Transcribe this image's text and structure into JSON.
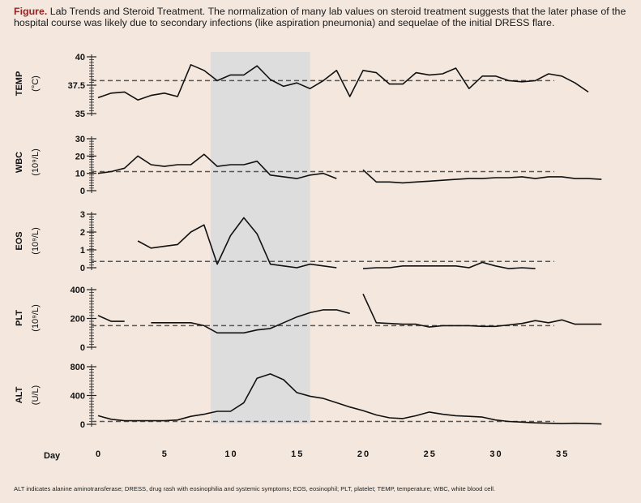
{
  "caption": {
    "label": "Figure.",
    "text": "Lab Trends and Steroid Treatment. The normalization of many lab values on steroid treatment suggests that the later phase of the hospital course was likely due to secondary infections (like aspiration pneumonia) and sequelae of the initial DRESS flare."
  },
  "footnote": "ALT indicates alanine aminotransferase; DRESS, drug rash with eosinophilia and systemic symptoms; EOS, eosinophil; PLT, platelet; TEMP, temperature; WBC, white blood cell.",
  "colors": {
    "background": "#f3e7de",
    "shade": "#dddddd",
    "line": "#111111",
    "reference": "#555555"
  },
  "chart_data": {
    "type": "line",
    "xlabel": "Day",
    "xlim": [
      0,
      35
    ],
    "xticks": [
      0,
      5,
      10,
      15,
      20,
      25,
      30,
      35
    ],
    "steroid_period": [
      8.5,
      16
    ],
    "panels": [
      {
        "id": "temp",
        "label": "TEMP",
        "unit": "(°C)",
        "ylim": [
          35,
          40
        ],
        "yticks": [
          35,
          37.5,
          40
        ],
        "ytick_labels": [
          "35",
          "37.5",
          "40"
        ],
        "reference": 37.9,
        "segments": [
          [
            [
              0,
              36.4
            ],
            [
              1,
              36.8
            ],
            [
              2,
              36.9
            ],
            [
              3,
              36.2
            ],
            [
              4,
              36.6
            ],
            [
              5,
              36.8
            ],
            [
              6,
              36.5
            ],
            [
              7,
              39.3
            ],
            [
              8,
              38.8
            ],
            [
              9,
              37.9
            ],
            [
              10,
              38.4
            ],
            [
              11,
              38.4
            ],
            [
              12,
              39.2
            ],
            [
              13,
              38.0
            ],
            [
              14,
              37.4
            ],
            [
              15,
              37.7
            ],
            [
              16,
              37.2
            ],
            [
              17,
              37.9
            ],
            [
              18,
              38.8
            ],
            [
              19,
              36.5
            ],
            [
              20,
              38.8
            ],
            [
              21,
              38.6
            ],
            [
              22,
              37.6
            ],
            [
              23,
              37.6
            ],
            [
              24,
              38.6
            ],
            [
              25,
              38.4
            ],
            [
              26,
              38.5
            ],
            [
              27,
              39.0
            ],
            [
              28,
              37.2
            ],
            [
              29,
              38.3
            ],
            [
              30,
              38.3
            ],
            [
              31,
              37.9
            ],
            [
              32,
              37.8
            ],
            [
              33,
              37.9
            ],
            [
              34,
              38.5
            ],
            [
              35,
              38.3
            ],
            [
              36,
              37.7
            ],
            [
              37,
              36.9
            ]
          ]
        ]
      },
      {
        "id": "wbc",
        "label": "WBC",
        "unit": "(10⁹/L)",
        "ylim": [
          0,
          30
        ],
        "yticks": [
          0,
          10,
          20,
          30
        ],
        "ytick_labels": [
          "0",
          "10",
          "20",
          "30"
        ],
        "reference": 11,
        "segments": [
          [
            [
              0,
              10
            ],
            [
              1,
              11
            ],
            [
              2,
              13
            ],
            [
              3,
              20
            ],
            [
              4,
              15
            ],
            [
              5,
              14
            ],
            [
              6,
              15
            ],
            [
              7,
              15
            ],
            [
              8,
              21
            ],
            [
              9,
              14
            ],
            [
              10,
              15
            ],
            [
              11,
              15
            ],
            [
              12,
              17
            ],
            [
              13,
              9
            ],
            [
              14,
              8
            ],
            [
              15,
              7
            ],
            [
              16,
              9
            ],
            [
              17,
              10
            ],
            [
              18,
              7
            ]
          ],
          [
            [
              20,
              12
            ],
            [
              21,
              5
            ],
            [
              22,
              5
            ],
            [
              23,
              4.5
            ],
            [
              24,
              5
            ],
            [
              25,
              5.5
            ],
            [
              26,
              6
            ],
            [
              27,
              6.5
            ],
            [
              28,
              7
            ],
            [
              29,
              7
            ],
            [
              30,
              7.5
            ],
            [
              31,
              7.5
            ],
            [
              32,
              8
            ],
            [
              33,
              7
            ],
            [
              34,
              8
            ],
            [
              35,
              8
            ],
            [
              36,
              7
            ],
            [
              37,
              7
            ],
            [
              38,
              6.5
            ]
          ]
        ]
      },
      {
        "id": "eos",
        "label": "EOS",
        "unit": "(10⁹/L)",
        "ylim": [
          0,
          3
        ],
        "yticks": [
          0,
          1,
          2,
          3
        ],
        "ytick_labels": [
          "0",
          "1",
          "2",
          "3"
        ],
        "reference": 0.35,
        "segments": [
          [
            [
              3,
              1.5
            ],
            [
              4,
              1.1
            ],
            [
              5,
              1.2
            ],
            [
              6,
              1.3
            ],
            [
              7,
              2.0
            ],
            [
              8,
              2.4
            ],
            [
              9,
              0.2
            ],
            [
              10,
              1.8
            ],
            [
              11,
              2.8
            ],
            [
              12,
              1.9
            ],
            [
              13,
              0.2
            ],
            [
              14,
              0.1
            ],
            [
              15,
              0.0
            ],
            [
              16,
              0.2
            ],
            [
              17,
              0.1
            ],
            [
              18,
              0.0
            ]
          ],
          [
            [
              20,
              -0.05
            ],
            [
              21,
              0.0
            ],
            [
              22,
              0.0
            ],
            [
              23,
              0.1
            ],
            [
              24,
              0.1
            ],
            [
              25,
              0.1
            ],
            [
              26,
              0.1
            ],
            [
              27,
              0.1
            ],
            [
              28,
              0.0
            ],
            [
              29,
              0.3
            ],
            [
              30,
              0.1
            ],
            [
              31,
              -0.05
            ],
            [
              32,
              0.0
            ],
            [
              33,
              -0.05
            ]
          ]
        ]
      },
      {
        "id": "plt",
        "label": "PLT",
        "unit": "(10⁹/L)",
        "ylim": [
          0,
          400
        ],
        "yticks": [
          0,
          200,
          400
        ],
        "ytick_labels": [
          "0",
          "200",
          "400"
        ],
        "reference": 150,
        "segments": [
          [
            [
              0,
              220
            ],
            [
              1,
              180
            ],
            [
              2,
              180
            ]
          ],
          [
            [
              4,
              170
            ],
            [
              5,
              170
            ],
            [
              6,
              170
            ],
            [
              7,
              170
            ],
            [
              8,
              150
            ],
            [
              9,
              100
            ],
            [
              10,
              100
            ],
            [
              11,
              100
            ],
            [
              12,
              120
            ],
            [
              13,
              130
            ],
            [
              14,
              170
            ],
            [
              15,
              210
            ],
            [
              16,
              240
            ],
            [
              17,
              260
            ],
            [
              18,
              260
            ],
            [
              19,
              235
            ]
          ],
          [
            [
              20,
              370
            ],
            [
              21,
              170
            ],
            [
              22,
              165
            ],
            [
              23,
              160
            ],
            [
              24,
              160
            ],
            [
              25,
              140
            ],
            [
              26,
              150
            ],
            [
              27,
              150
            ],
            [
              28,
              150
            ],
            [
              29,
              145
            ],
            [
              30,
              145
            ],
            [
              31,
              155
            ],
            [
              32,
              165
            ],
            [
              33,
              185
            ],
            [
              34,
              170
            ],
            [
              35,
              190
            ],
            [
              36,
              160
            ],
            [
              37,
              160
            ],
            [
              38,
              160
            ]
          ]
        ]
      },
      {
        "id": "alt",
        "label": "ALT",
        "unit": "(U/L)",
        "ylim": [
          0,
          800
        ],
        "yticks": [
          0,
          400,
          800
        ],
        "ytick_labels": [
          "0",
          "400",
          "800"
        ],
        "reference": 40,
        "segments": [
          [
            [
              0,
              120
            ],
            [
              1,
              70
            ],
            [
              2,
              50
            ],
            [
              3,
              50
            ],
            [
              4,
              50
            ],
            [
              5,
              50
            ],
            [
              6,
              60
            ],
            [
              7,
              110
            ],
            [
              8,
              140
            ],
            [
              9,
              180
            ],
            [
              10,
              180
            ],
            [
              11,
              300
            ],
            [
              12,
              640
            ],
            [
              13,
              700
            ],
            [
              14,
              620
            ],
            [
              15,
              440
            ],
            [
              16,
              390
            ],
            [
              17,
              360
            ],
            [
              18,
              300
            ],
            [
              19,
              240
            ],
            [
              20,
              190
            ],
            [
              21,
              130
            ],
            [
              22,
              90
            ],
            [
              23,
              80
            ],
            [
              24,
              120
            ],
            [
              25,
              170
            ],
            [
              26,
              140
            ],
            [
              27,
              120
            ],
            [
              28,
              110
            ],
            [
              29,
              100
            ],
            [
              30,
              60
            ],
            [
              31,
              40
            ],
            [
              32,
              30
            ],
            [
              33,
              20
            ],
            [
              34,
              15
            ],
            [
              35,
              10
            ],
            [
              36,
              15
            ],
            [
              37,
              10
            ],
            [
              38,
              5
            ]
          ]
        ]
      }
    ]
  }
}
